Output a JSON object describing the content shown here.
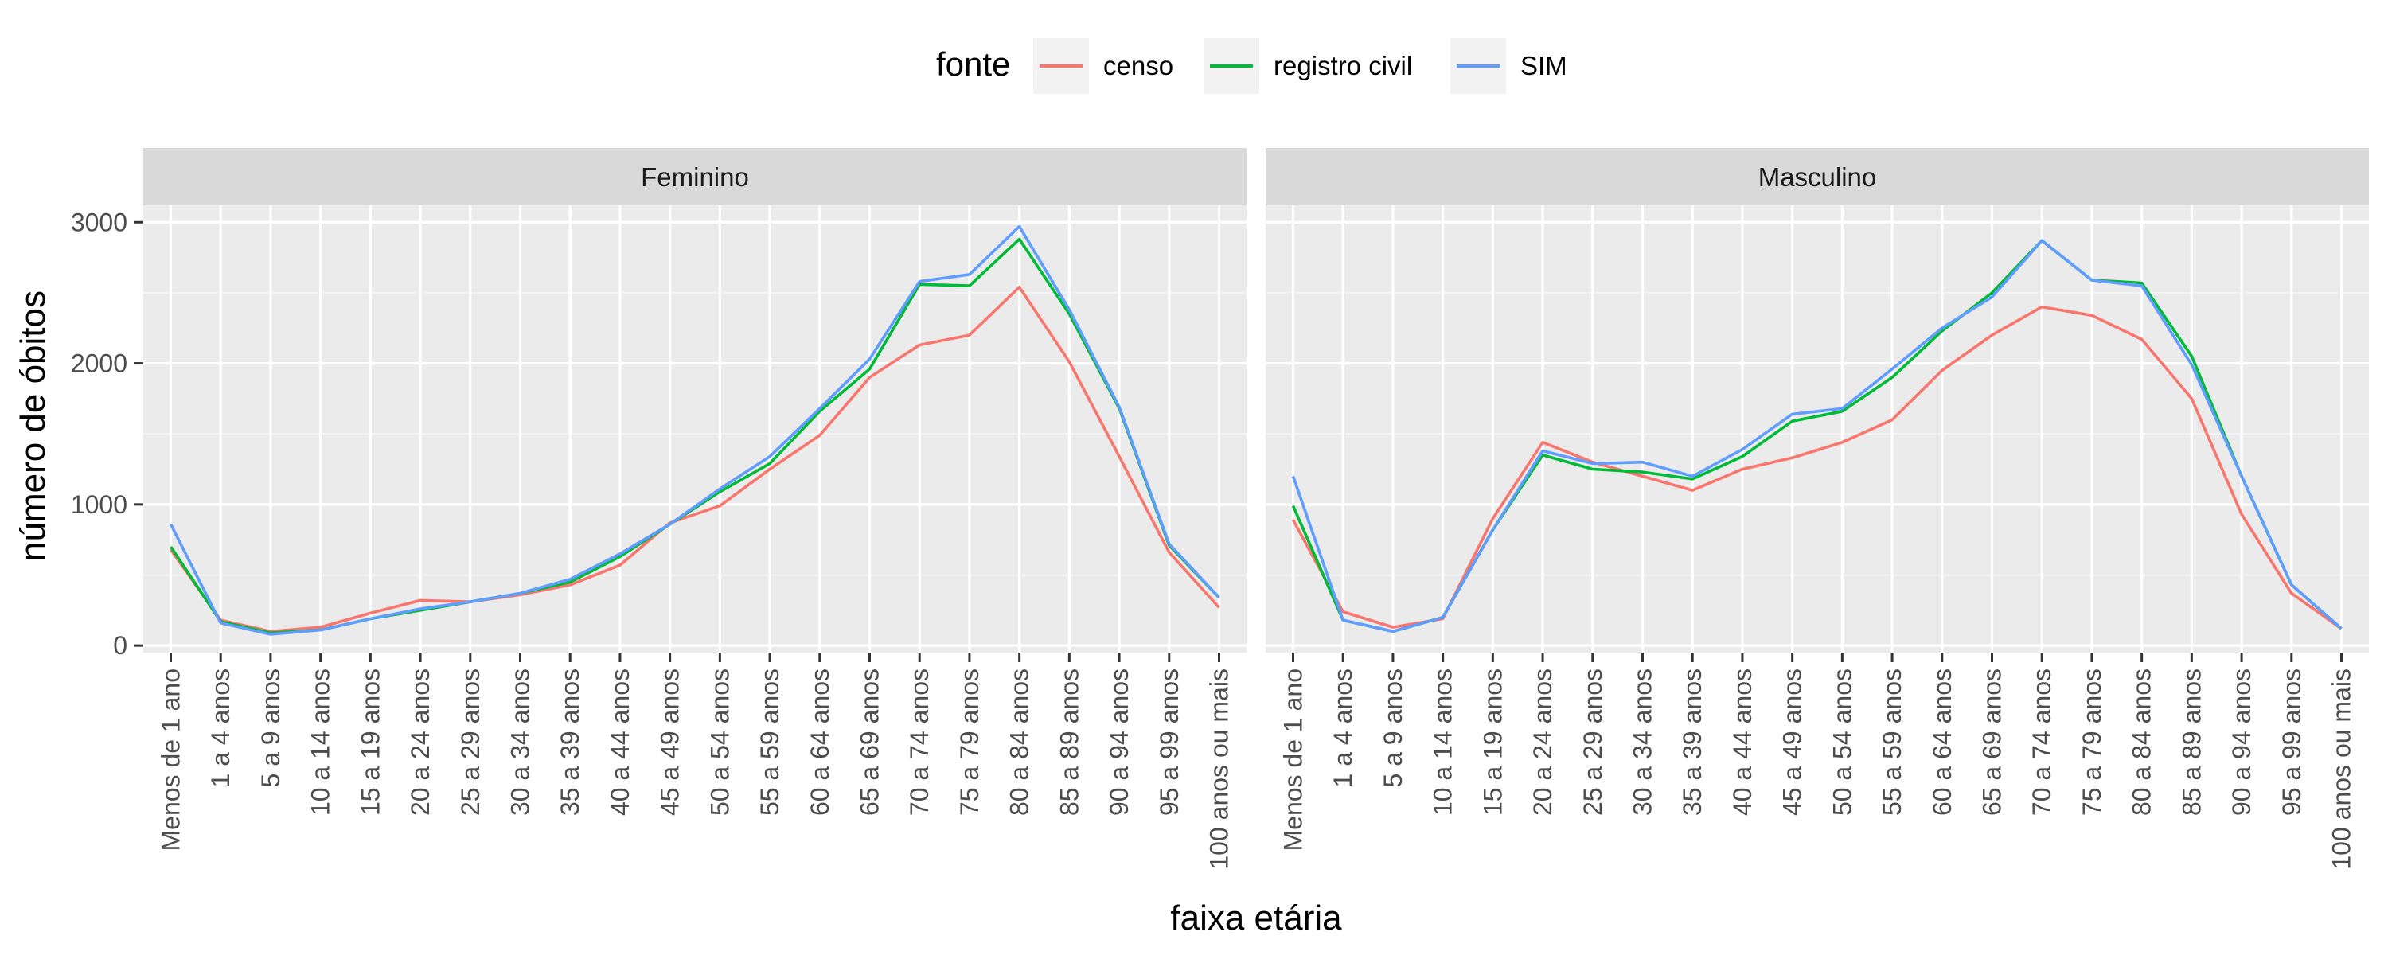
{
  "chart_data": {
    "type": "line",
    "xlabel": "faixa etária",
    "ylabel": "número de óbitos",
    "ylim": [
      -50,
      3120
    ],
    "y_ticks": [
      0,
      1000,
      2000,
      3000
    ],
    "y_tick_labels": [
      "0",
      "1000",
      "2000",
      "3000"
    ],
    "grid": true,
    "legend": {
      "title": "fonte",
      "position": "top",
      "entries": [
        "censo",
        "registro civil",
        "SIM"
      ]
    },
    "categories": [
      "Menos de 1 ano",
      "1 a 4 anos",
      "5 a 9 anos",
      "10 a 14 anos",
      "15 a 19 anos",
      "20 a 24 anos",
      "25 a 29 anos",
      "30 a 34 anos",
      "35 a 39 anos",
      "40 a 44 anos",
      "45 a 49 anos",
      "50 a 54 anos",
      "55 a 59 anos",
      "60 a 64 anos",
      "65 a 69 anos",
      "70 a 74 anos",
      "75 a 79 anos",
      "80 a 84 anos",
      "85 a 89 anos",
      "90 a 94 anos",
      "95 a 99 anos",
      "100 anos ou mais"
    ],
    "series_colors": {
      "censo": "#F8766D",
      "registro civil": "#00BA38",
      "SIM": "#619CFF"
    },
    "panels": [
      {
        "name": "Feminino",
        "series": [
          {
            "name": "censo",
            "values": [
              680,
              180,
              100,
              130,
              230,
              320,
              310,
              360,
              430,
              570,
              870,
              990,
              1250,
              1490,
              1900,
              2130,
              2200,
              2540,
              2010,
              1340,
              660,
              270
            ]
          },
          {
            "name": "registro civil",
            "values": [
              700,
              170,
              90,
              110,
              190,
              250,
              310,
              370,
              450,
              630,
              860,
              1090,
              1290,
              1660,
              1960,
              2560,
              2550,
              2880,
              2350,
              1680,
              710,
              340
            ]
          },
          {
            "name": "SIM",
            "values": [
              860,
              160,
              80,
              110,
              190,
              260,
              310,
              370,
              470,
              650,
              860,
              1110,
              1340,
              1680,
              2030,
              2580,
              2630,
              2970,
              2380,
              1690,
              720,
              340
            ]
          }
        ]
      },
      {
        "name": "Masculino",
        "series": [
          {
            "name": "censo",
            "values": [
              890,
              240,
              130,
              190,
              900,
              1440,
              1300,
              1200,
              1100,
              1250,
              1330,
              1440,
              1600,
              1950,
              2200,
              2400,
              2340,
              2170,
              1750,
              930,
              370,
              120
            ]
          },
          {
            "name": "registro civil",
            "values": [
              990,
              180,
              100,
              200,
              820,
              1350,
              1250,
              1230,
              1180,
              1340,
              1590,
              1660,
              1900,
              2230,
              2500,
              2870,
              2590,
              2570,
              2050,
              1200,
              430,
              120
            ]
          },
          {
            "name": "SIM",
            "values": [
              1200,
              180,
              100,
              200,
              820,
              1380,
              1290,
              1300,
              1200,
              1390,
              1640,
              1680,
              1960,
              2250,
              2470,
              2870,
              2590,
              2550,
              1990,
              1200,
              430,
              120
            ]
          }
        ]
      }
    ]
  }
}
